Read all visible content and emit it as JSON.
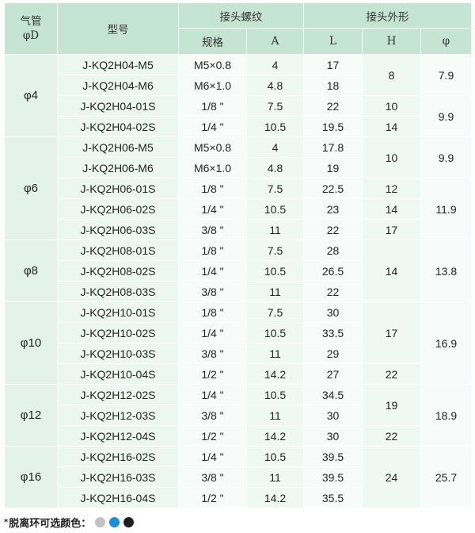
{
  "header": {
    "tube": "气管φD",
    "model": "型号",
    "thread_group": "接头螺纹",
    "shape_group": "接头外形",
    "spec": "规格",
    "A": "A",
    "L": "L",
    "H": "H",
    "phi": "φ"
  },
  "groups": [
    {
      "label": "φ4",
      "rows": [
        {
          "model": "J-KQ2H04-M5",
          "spec": "M5×0.8",
          "A": "4",
          "L": "17"
        },
        {
          "model": "J-KQ2H04-M6",
          "spec": "M6×1.0",
          "A": "4.8",
          "L": "18"
        },
        {
          "model": "J-KQ2H04-01S",
          "spec": "1/8 \"",
          "A": "7.5",
          "L": "22"
        },
        {
          "model": "J-KQ2H04-02S",
          "spec": "1/4 \"",
          "A": "10.5",
          "L": "19.5"
        }
      ]
    },
    {
      "label": "φ6",
      "rows": [
        {
          "model": "J-KQ2H06-M5",
          "spec": "M5×0.8",
          "A": "4",
          "L": "17.8"
        },
        {
          "model": "J-KQ2H06-M6",
          "spec": "M6×1.0",
          "A": "4.8",
          "L": "19"
        },
        {
          "model": "J-KQ2H06-01S",
          "spec": "1/8 \"",
          "A": "7.5",
          "L": "22.5"
        },
        {
          "model": "J-KQ2H06-02S",
          "spec": "1/4 \"",
          "A": "10.5",
          "L": "23"
        },
        {
          "model": "J-KQ2H06-03S",
          "spec": "3/8 \"",
          "A": "11",
          "L": "22"
        }
      ]
    },
    {
      "label": "φ8",
      "rows": [
        {
          "model": "J-KQ2H08-01S",
          "spec": "1/8 \"",
          "A": "7.5",
          "L": "28"
        },
        {
          "model": "J-KQ2H08-02S",
          "spec": "1/4 \"",
          "A": "10.5",
          "L": "26.5"
        },
        {
          "model": "J-KQ2H08-03S",
          "spec": "3/8 \"",
          "A": "11",
          "L": "22"
        }
      ]
    },
    {
      "label": "φ10",
      "rows": [
        {
          "model": "J-KQ2H10-01S",
          "spec": "1/8 \"",
          "A": "7.5",
          "L": "30"
        },
        {
          "model": "J-KQ2H10-02S",
          "spec": "1/4 \"",
          "A": "10.5",
          "L": "33.5"
        },
        {
          "model": "J-KQ2H10-03S",
          "spec": "3/8 \"",
          "A": "11",
          "L": "29"
        },
        {
          "model": "J-KQ2H10-04S",
          "spec": "1/2 \"",
          "A": "14.2",
          "L": "27"
        }
      ]
    },
    {
      "label": "φ12",
      "rows": [
        {
          "model": "J-KQ2H12-02S",
          "spec": "1/4 \"",
          "A": "10.5",
          "L": "34.5"
        },
        {
          "model": "J-KQ2H12-03S",
          "spec": "3/8 \"",
          "A": "11",
          "L": "30"
        },
        {
          "model": "J-KQ2H12-04S",
          "spec": "1/2 \"",
          "A": "14.2",
          "L": "30"
        }
      ]
    },
    {
      "label": "φ16",
      "rows": [
        {
          "model": "J-KQ2H16-02S",
          "spec": "1/4 \"",
          "A": "10.5",
          "L": "39.5"
        },
        {
          "model": "J-KQ2H16-03S",
          "spec": "3/8 \"",
          "A": "11",
          "L": "39.5"
        },
        {
          "model": "J-KQ2H16-04S",
          "spec": "1/2 \"",
          "A": "14.2",
          "L": "35.5"
        }
      ]
    }
  ],
  "h_cells": [
    {
      "value": "8",
      "row": 0,
      "span": 2
    },
    {
      "value": "10",
      "row": 2,
      "span": 1
    },
    {
      "value": "14",
      "row": 3,
      "span": 1
    },
    {
      "value": "10",
      "row": 4,
      "span": 2
    },
    {
      "value": "12",
      "row": 6,
      "span": 1
    },
    {
      "value": "14",
      "row": 7,
      "span": 1
    },
    {
      "value": "17",
      "row": 8,
      "span": 1
    },
    {
      "value": "14",
      "row": 9,
      "span": 3
    },
    {
      "value": "17",
      "row": 12,
      "span": 3
    },
    {
      "value": "22",
      "row": 15,
      "span": 1
    },
    {
      "value": "19",
      "row": 16,
      "span": 2
    },
    {
      "value": "22",
      "row": 18,
      "span": 1
    },
    {
      "value": "24",
      "row": 19,
      "span": 3
    }
  ],
  "phi_cells": [
    {
      "value": "7.9",
      "row": 0,
      "span": 2
    },
    {
      "value": "9.9",
      "row": 2,
      "span": 2
    },
    {
      "value": "9.9",
      "row": 4,
      "span": 2
    },
    {
      "value": "11.9",
      "row": 6,
      "span": 3
    },
    {
      "value": "13.8",
      "row": 9,
      "span": 3
    },
    {
      "value": "16.9",
      "row": 12,
      "span": 4
    },
    {
      "value": "18.9",
      "row": 16,
      "span": 3
    },
    {
      "value": "25.7",
      "row": 19,
      "span": 3
    }
  ],
  "footer": {
    "asterisk": "*",
    "text": "脱离环可选颜色：",
    "colors": [
      {
        "name": "gray",
        "hex": "#c2c2c2"
      },
      {
        "name": "blue",
        "hex": "#1a8fd8"
      },
      {
        "name": "black",
        "hex": "#1e1e1e"
      }
    ]
  }
}
